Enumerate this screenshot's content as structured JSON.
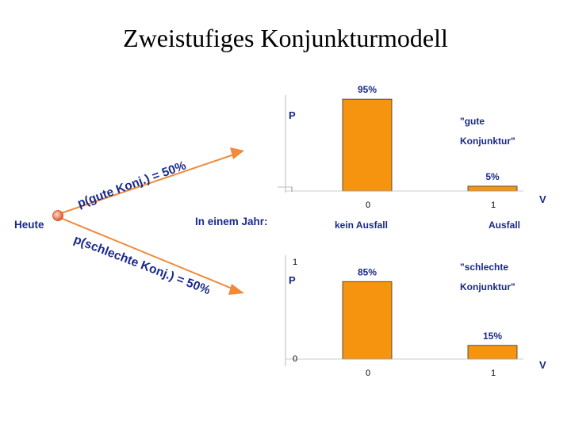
{
  "title": "Zweistufiges Konjunkturmodell",
  "tree": {
    "root_label": "Heute",
    "upper_branch": "p(gute Konj.) = 50%",
    "lower_branch": "p(schlechte Konj.) = 50%",
    "middle_label": "In einem Jahr:"
  },
  "axis_titles": {
    "p": "P",
    "v": "V"
  },
  "column_labels": {
    "no_default": "kein Ausfall",
    "default": "Ausfall"
  },
  "colors": {
    "bar": "#f7940f",
    "text": "#1a2a8a",
    "arrow": "#f08a3c"
  },
  "chart_data": [
    {
      "type": "bar",
      "annotation": "\"gute Konjunktur\"",
      "categories": [
        "0",
        "1"
      ],
      "values": [
        95,
        5
      ],
      "value_labels": [
        "95%",
        "5%"
      ],
      "ylim": [
        0,
        100
      ],
      "y_ticks": []
    },
    {
      "type": "bar",
      "annotation": "\"schlechte Konjunktur\"",
      "categories": [
        "0",
        "1"
      ],
      "values": [
        85,
        15
      ],
      "value_labels": [
        "85%",
        "15%"
      ],
      "ylim": [
        0,
        100
      ],
      "y_ticks": [
        "1",
        "0"
      ]
    }
  ]
}
